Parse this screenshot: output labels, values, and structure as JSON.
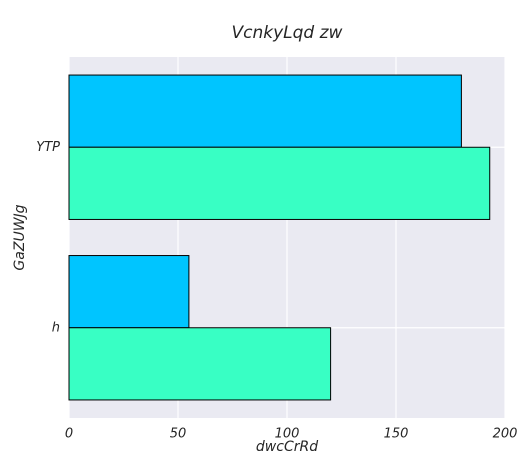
{
  "chart_data": {
    "type": "bar",
    "orientation": "horizontal",
    "title": "VcnkyLqd   zw",
    "xlabel": "dwcCrRd",
    "ylabel": "GaZUWJg",
    "categories": [
      "YTP",
      "h"
    ],
    "series": [
      {
        "values": [
          180,
          55
        ],
        "color": "#00c5ff"
      },
      {
        "values": [
          193,
          120
        ],
        "color": "#38ffc4"
      }
    ],
    "xlim": [
      0,
      200
    ],
    "xticks": [
      0,
      50,
      100,
      150,
      200
    ],
    "grid": true,
    "legend": "none"
  },
  "colors": {
    "plot_background": "#eaeaf2",
    "grid": "#ffffff",
    "bar_edge": "#000000"
  }
}
